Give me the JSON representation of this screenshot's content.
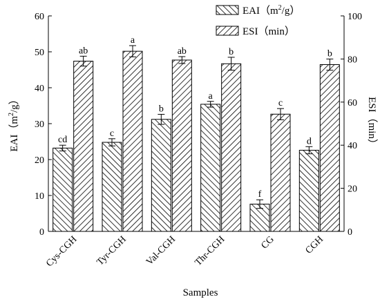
{
  "chart_data": {
    "type": "bar",
    "xlabel": "Samples",
    "categories": [
      "Cys-CGH",
      "Tyr-CGH",
      "Val-CGH",
      "Thr-CGH",
      "CG",
      "CGH"
    ],
    "left_axis": {
      "label_prefix": "EAI（m",
      "label_sup": "2",
      "label_suffix": "/g）",
      "ylim": [
        0,
        60
      ],
      "ticks": [
        0,
        10,
        20,
        30,
        40,
        50,
        60
      ]
    },
    "right_axis": {
      "label": "ESI（min）",
      "ylim": [
        0,
        100
      ],
      "ticks": [
        0,
        20,
        40,
        60,
        80,
        100
      ]
    },
    "series": [
      {
        "name": "EAI（m²/g）",
        "axis": "left",
        "values": [
          23.2,
          24.8,
          31.2,
          35.4,
          7.6,
          22.6
        ],
        "errors": [
          0.8,
          1.0,
          1.4,
          0.8,
          1.2,
          1.0
        ],
        "labels": [
          "cd",
          "c",
          "b",
          "a",
          "f",
          "d"
        ],
        "pattern": "hatch-backslash"
      },
      {
        "name": "ESI（min）",
        "axis": "right",
        "values": [
          79.0,
          83.6,
          79.5,
          77.8,
          54.4,
          77.4
        ],
        "errors": [
          2.3,
          2.6,
          1.6,
          3.0,
          2.6,
          2.6
        ],
        "labels": [
          "ab",
          "a",
          "ab",
          "b",
          "c",
          "b"
        ],
        "pattern": "hatch-slash"
      }
    ],
    "legend": {
      "position": "top-right",
      "entries": [
        {
          "prefix": "EAI（m",
          "sup": "2",
          "suffix": "/g）"
        },
        {
          "prefix": "ESI（min）",
          "sup": "",
          "suffix": ""
        }
      ]
    },
    "grid": false
  }
}
